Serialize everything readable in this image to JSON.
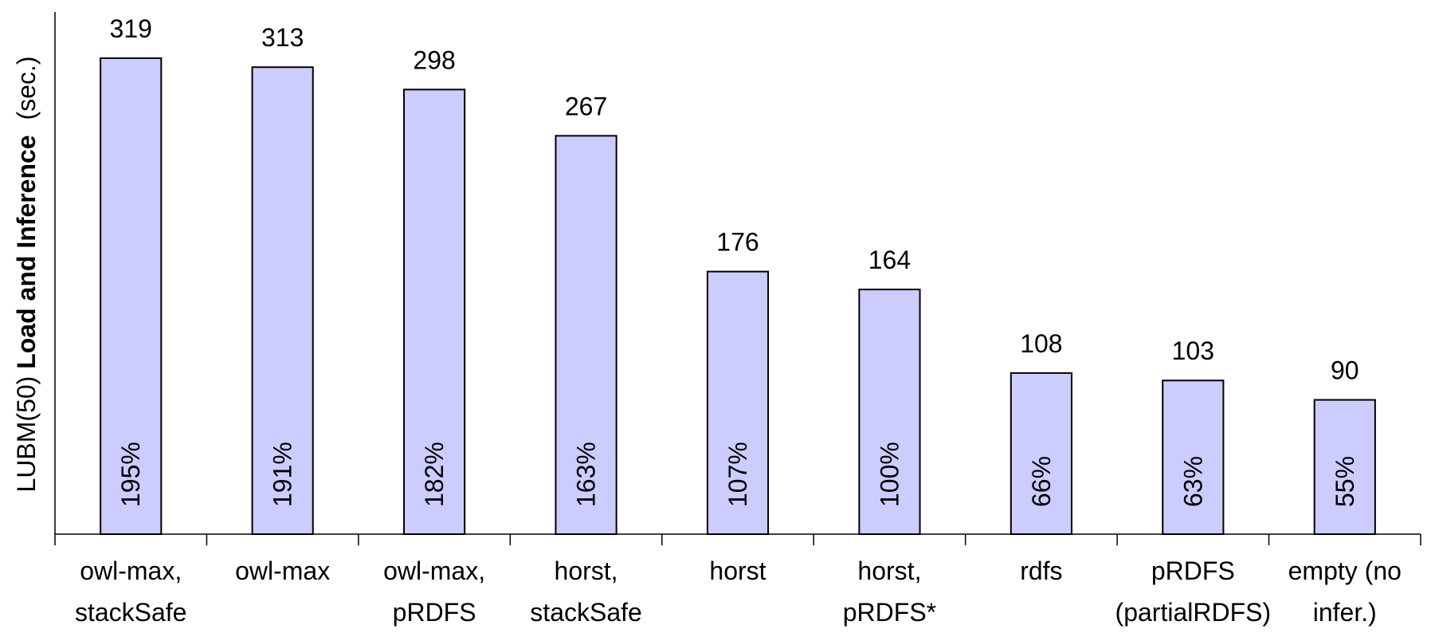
{
  "chart_data": {
    "type": "bar",
    "y_label": [
      "LUBM(50)",
      "Load and Inference",
      "(sec.)"
    ],
    "categories": [
      "owl-max,\nstackSafe",
      "owl-max",
      "owl-max,\npRDFS",
      "horst,\nstackSafe",
      "horst",
      "horst,\npRDFS*",
      "rdfs",
      "pRDFS\n(partialRDFS)",
      "empty (no\ninfer.)"
    ],
    "values": [
      319,
      313,
      298,
      267,
      176,
      164,
      108,
      103,
      90
    ],
    "inner_labels": [
      "195%",
      "191%",
      "182%",
      "163%",
      "107%",
      "100%",
      "66%",
      "63%",
      "55%"
    ],
    "color": "#ccccff",
    "ylim": [
      0,
      350
    ]
  }
}
